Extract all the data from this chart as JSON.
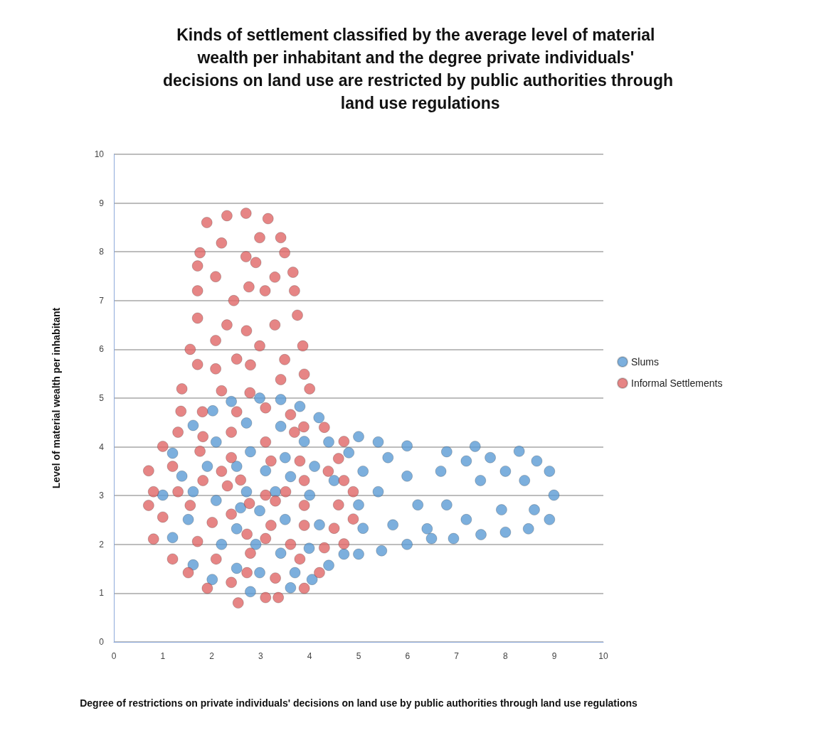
{
  "chart_data": {
    "type": "scatter",
    "title": "Kinds of settlement classified by the average level of material wealth per inhabitant and the degree private individuals' decisions on land use are restricted by public authorities through land use regulations",
    "xlabel": "Degree of restrictions on private individuals' decisions on land use by public authorities through land use regulations",
    "ylabel": "Level of material wealth per inhabitant",
    "xlim": [
      0,
      10
    ],
    "ylim": [
      0,
      10
    ],
    "xticks": [
      0,
      1,
      2,
      3,
      4,
      5,
      6,
      7,
      8,
      9,
      10
    ],
    "yticks": [
      0,
      1,
      2,
      3,
      4,
      5,
      6,
      7,
      8,
      9,
      10
    ],
    "grid": "y",
    "legend": "right",
    "marker": "circle",
    "series": [
      {
        "name": "Slums",
        "color": "#5b9bd5",
        "x": [
          2.98,
          2.4,
          3.41,
          3.8,
          2.02,
          4.19,
          1.62,
          2.71,
          3.41,
          2.09,
          3.89,
          4.39,
          1.2,
          2.79,
          3.5,
          1.91,
          2.51,
          3.1,
          4.1,
          1.39,
          3.61,
          1.0,
          1.62,
          2.71,
          3.3,
          4.0,
          2.09,
          2.59,
          2.98,
          1.52,
          3.5,
          4.2,
          1.2,
          2.2,
          2.51,
          2.9,
          3.99,
          3.41,
          1.62,
          2.51,
          2.98,
          3.7,
          4.39,
          2.01,
          4.05,
          2.79,
          3.61,
          5.0,
          5.4,
          4.8,
          5.6,
          5.99,
          6.8,
          7.38,
          7.2,
          7.69,
          8.28,
          8.64,
          5.09,
          5.99,
          6.68,
          7.49,
          8.0,
          8.39,
          8.9,
          4.5,
          5.4,
          8.99,
          5.0,
          6.21,
          6.8,
          7.92,
          8.59,
          7.2,
          8.9,
          5.09,
          5.7,
          6.4,
          6.49,
          6.94,
          7.5,
          8.0,
          8.47,
          4.7,
          5.0,
          5.47,
          5.99
        ],
        "values": [
          5.0,
          4.93,
          4.97,
          4.83,
          4.74,
          4.6,
          4.44,
          4.49,
          4.42,
          4.1,
          4.11,
          4.1,
          3.87,
          3.9,
          3.78,
          3.6,
          3.6,
          3.51,
          3.6,
          3.4,
          3.39,
          3.01,
          3.08,
          3.08,
          3.08,
          3.01,
          2.9,
          2.75,
          2.69,
          2.51,
          2.51,
          2.4,
          2.14,
          2.0,
          2.32,
          2.0,
          1.92,
          1.82,
          1.58,
          1.51,
          1.42,
          1.42,
          1.57,
          1.28,
          1.28,
          1.03,
          1.11,
          4.21,
          4.1,
          3.88,
          3.78,
          4.02,
          3.9,
          4.01,
          3.71,
          3.78,
          3.91,
          3.71,
          3.5,
          3.4,
          3.5,
          3.31,
          3.5,
          3.31,
          3.5,
          3.31,
          3.08,
          3.01,
          2.81,
          2.81,
          2.81,
          2.71,
          2.71,
          2.51,
          2.51,
          2.33,
          2.4,
          2.32,
          2.12,
          2.12,
          2.2,
          2.25,
          2.32,
          1.8,
          1.8,
          1.87,
          2.0
        ]
      },
      {
        "name": "Informal Settlements",
        "color": "#e06666",
        "x": [
          1.9,
          2.31,
          2.7,
          3.15,
          2.98,
          3.41,
          2.2,
          1.76,
          2.7,
          2.9,
          3.49,
          1.71,
          2.08,
          3.29,
          3.66,
          1.71,
          2.76,
          3.09,
          3.69,
          2.45,
          1.71,
          3.75,
          2.31,
          2.71,
          3.29,
          2.08,
          2.98,
          3.86,
          1.56,
          1.71,
          2.08,
          2.51,
          2.79,
          3.49,
          3.41,
          3.89,
          1.39,
          2.2,
          2.78,
          4.0,
          3.1,
          1.37,
          1.81,
          2.51,
          3.61,
          3.69,
          3.88,
          4.3,
          1.31,
          1.82,
          2.4,
          3.1,
          1.0,
          1.76,
          2.4,
          3.21,
          3.8,
          0.71,
          1.2,
          2.2,
          4.7,
          4.59,
          4.38,
          4.7,
          4.89,
          4.59,
          4.89,
          4.5,
          4.3,
          4.7,
          4.2,
          1.82,
          2.32,
          2.59,
          3.89,
          0.81,
          1.31,
          3.1,
          3.51,
          3.3,
          0.71,
          1.56,
          2.77,
          3.89,
          1.0,
          2.01,
          2.4,
          3.21,
          3.89,
          0.81,
          1.71,
          2.72,
          3.1,
          3.61,
          1.2,
          2.09,
          2.79,
          3.8,
          1.52,
          2.72,
          2.4,
          3.3,
          1.91,
          3.1,
          3.36,
          3.89,
          2.54
        ],
        "values": [
          8.6,
          8.74,
          8.79,
          8.68,
          8.29,
          8.29,
          8.18,
          7.98,
          7.9,
          7.78,
          7.98,
          7.71,
          7.49,
          7.48,
          7.58,
          7.2,
          7.28,
          7.2,
          7.2,
          7.0,
          6.64,
          6.7,
          6.5,
          6.38,
          6.5,
          6.18,
          6.07,
          6.07,
          6.0,
          5.69,
          5.6,
          5.8,
          5.68,
          5.79,
          5.38,
          5.49,
          5.19,
          5.15,
          5.11,
          5.19,
          4.8,
          4.73,
          4.72,
          4.72,
          4.66,
          4.3,
          4.41,
          4.4,
          4.3,
          4.21,
          4.3,
          4.1,
          4.01,
          3.91,
          3.78,
          3.71,
          3.71,
          3.51,
          3.6,
          3.5,
          4.11,
          3.76,
          3.5,
          3.31,
          3.08,
          2.81,
          2.52,
          2.33,
          1.93,
          2.01,
          1.42,
          3.31,
          3.2,
          3.32,
          3.31,
          3.08,
          3.08,
          3.01,
          3.08,
          2.89,
          2.8,
          2.8,
          2.84,
          2.8,
          2.56,
          2.45,
          2.62,
          2.39,
          2.39,
          2.11,
          2.06,
          2.21,
          2.12,
          2.0,
          1.7,
          1.7,
          1.82,
          1.7,
          1.42,
          1.42,
          1.22,
          1.31,
          1.1,
          0.91,
          0.91,
          1.1,
          0.8
        ]
      }
    ]
  }
}
